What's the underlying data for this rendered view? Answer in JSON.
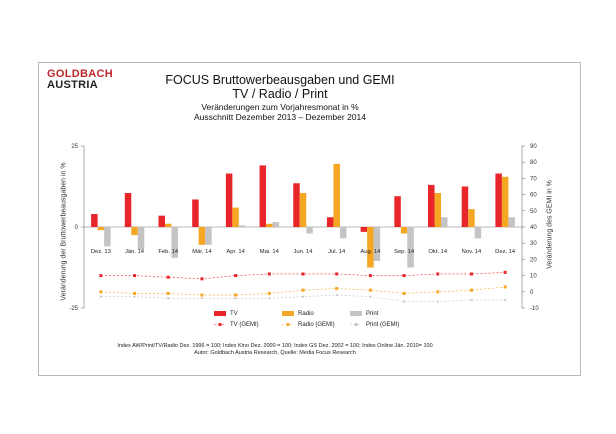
{
  "logo": {
    "line1": "GOLDBACH",
    "line2": "AUSTRIA"
  },
  "chart_data": {
    "type": "bar",
    "title": "FOCUS Bruttowerbeausgaben und GEMI",
    "subtitle": "TV / Radio / Print",
    "subtitle2": "Veränderungen zum Vorjahresmonat in %",
    "subtitle3": "Ausschnitt  Dezember 2013 –  Dezember 2014",
    "ylabel": "Veränderung der Bruttowerbeausgaben in %",
    "y2label": "Veränderung des GEMI in %",
    "ylim": [
      -25,
      25
    ],
    "y_ticks": [
      "25",
      "0",
      "-25"
    ],
    "y2lim": [
      -10,
      90
    ],
    "y2_ticks": [
      "90",
      "80",
      "70",
      "60",
      "50",
      "40",
      "30",
      "20",
      "10",
      "0",
      "-10"
    ],
    "categories": [
      "Dez. 13",
      "Jän. 14",
      "Feb. 14",
      "Mär. 14",
      "Apr. 14",
      "Mai. 14",
      "Jun. 14",
      "Jul. 14",
      "Aug. 14",
      "Sep. 14",
      "Okt. 14",
      "Nov. 14",
      "Dez. 14"
    ],
    "series": [
      {
        "name": "TV",
        "color": "#e8252a",
        "values": [
          4,
          10.5,
          3.5,
          8.5,
          16.5,
          19,
          13.5,
          3,
          -1.5,
          9.5,
          13,
          12.5,
          16.5
        ]
      },
      {
        "name": "Radio",
        "color": "#f5a623",
        "values": [
          -1,
          -2.5,
          1,
          -5.5,
          6,
          1,
          10.5,
          19.5,
          -12.5,
          -2,
          10.5,
          5.5,
          15.5
        ]
      },
      {
        "name": "Print",
        "color": "#c4c4c4",
        "values": [
          -6,
          -7,
          -9.5,
          -5.5,
          0.5,
          1.5,
          -2,
          -3.5,
          -10.5,
          -12.5,
          3,
          -3.5,
          3
        ]
      }
    ],
    "gemi_series": [
      {
        "name": "TV (GEMI)",
        "color": "#e8252a",
        "values": [
          10,
          10,
          9,
          8,
          10,
          11,
          11,
          11,
          10,
          10,
          11,
          11,
          12
        ]
      },
      {
        "name": "Radio (GEMI)",
        "color": "#f5a623",
        "values": [
          0,
          -1,
          -1,
          -2,
          -2,
          -1,
          1,
          2,
          1,
          -1,
          0,
          1,
          3
        ]
      },
      {
        "name": "Print (GEMI)",
        "color": "#c4c4c4",
        "values": [
          -3,
          -3,
          -4,
          -4,
          -4,
          -4,
          -3,
          -2,
          -3,
          -6,
          -6,
          -5,
          -5
        ]
      }
    ]
  },
  "footnote": {
    "line1": "Index AW/Print/TV/Radio Dez. 1996 = 100; Index Kino Dez. 2000 = 100; Index GS Dez. 2002 = 100; Index Online Jän. 2010= 100",
    "line2": "Autor: Goldbach Austria Research, Quelle: Media Focus Research"
  }
}
